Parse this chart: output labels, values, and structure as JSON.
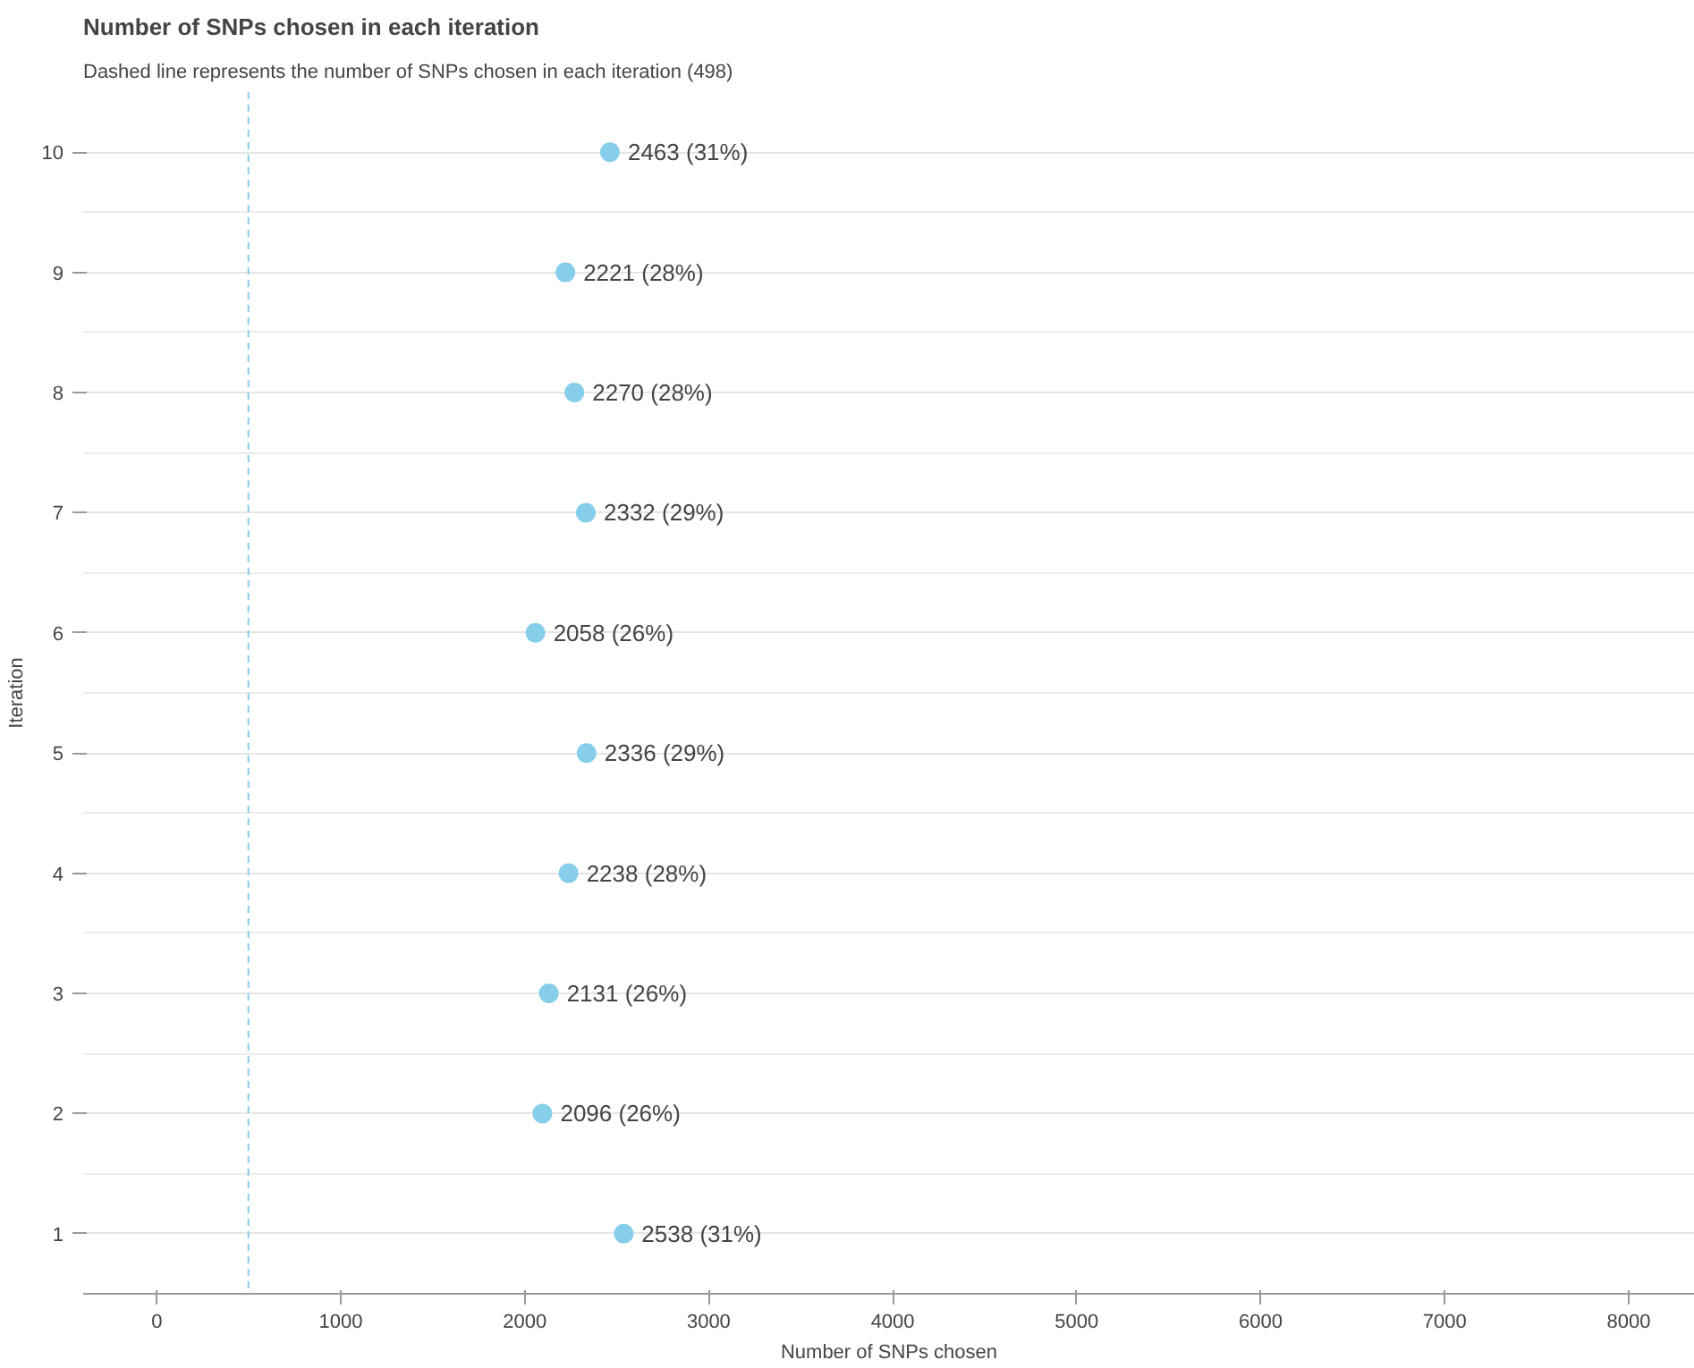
{
  "chart_data": {
    "type": "scatter",
    "orientation": "horizontal",
    "title": "Number of SNPs chosen in each iteration",
    "subtitle": "Dashed line represents the number of SNPs chosen in each iteration (498)",
    "xlabel": "Number of SNPs chosen",
    "ylabel": "Iteration",
    "categories": [
      "10",
      "9",
      "8",
      "7",
      "6",
      "5",
      "4",
      "3",
      "2",
      "1"
    ],
    "values": [
      2463,
      2221,
      2270,
      2332,
      2058,
      2336,
      2238,
      2131,
      2096,
      2538
    ],
    "value_labels": [
      "2463 (31%)",
      "2221 (28%)",
      "2270 (28%)",
      "2332 (29%)",
      "2058 (26%)",
      "2336 (29%)",
      "2238 (28%)",
      "2131 (26%)",
      "2096 (26%)",
      "2538 (31%)"
    ],
    "color": "#87ceeb",
    "marker": "circle",
    "xlim": [
      -400,
      8360
    ],
    "xticks": [
      0,
      1000,
      2000,
      3000,
      4000,
      5000,
      6000,
      7000,
      8000
    ],
    "ref_lines": [
      {
        "axis": "x",
        "value": 498,
        "color": "#87ceeb",
        "line_style": "dashed"
      }
    ],
    "grid": "y"
  }
}
